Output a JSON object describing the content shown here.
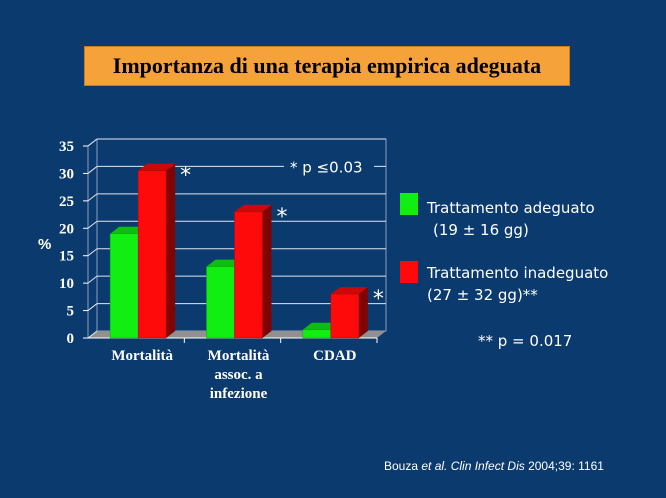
{
  "title": "Importanza di una terapia empirica adeguata",
  "chart_data": {
    "type": "bar",
    "title": "Importanza di una terapia empirica adeguata",
    "ylabel": "%",
    "xlabel": "",
    "ylim": [
      0,
      35
    ],
    "yticks": [
      0,
      5,
      10,
      15,
      20,
      25,
      30,
      35
    ],
    "grid": true,
    "categories": [
      [
        "Mortalità"
      ],
      [
        "Mortalità",
        "assoc. a",
        "infezione"
      ],
      [
        "CDAD"
      ]
    ],
    "series": [
      {
        "name": "Trattamento adeguato",
        "detail": "(19 ± 16 gg)",
        "color": "#11ee11",
        "values": [
          19,
          13,
          1.5
        ]
      },
      {
        "name": "Trattamento inadeguato",
        "detail": "(27 ± 32 gg)**",
        "color": "#ff0a0a",
        "values": [
          30.5,
          23,
          8
        ]
      }
    ],
    "significance_marks": [
      "*",
      "*",
      "*"
    ],
    "annotation": "* p ≤0.03",
    "legend_position": "right",
    "footnote": "** p = 0.017"
  },
  "citation": {
    "author": "Bouza ",
    "etal": "et al.",
    "journal": " Clin Infect Dis",
    "rest": " 2004;39: 1161"
  }
}
